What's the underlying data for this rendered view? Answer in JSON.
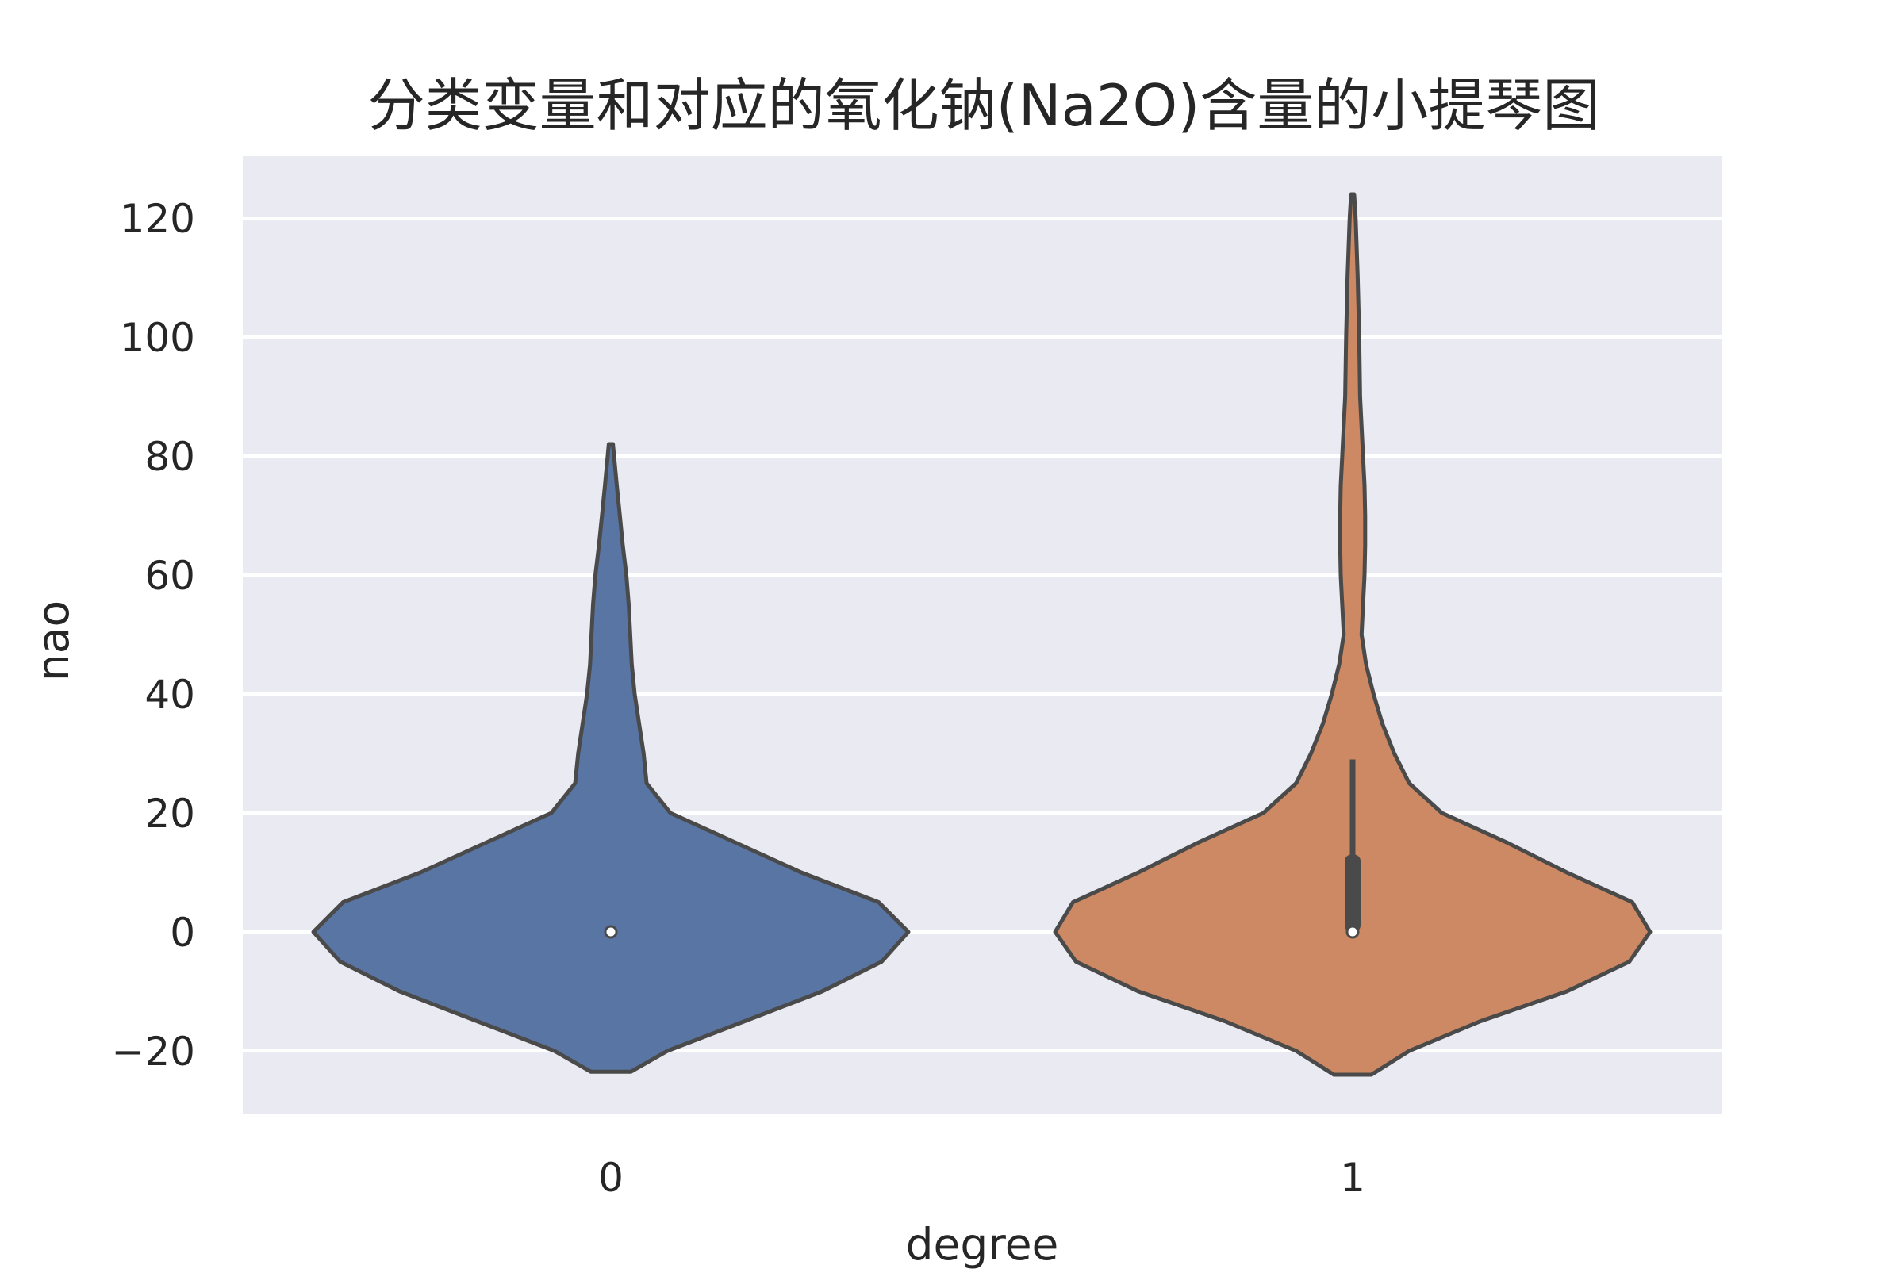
{
  "chart_data": {
    "type": "violin",
    "title": "分类变量和对应的氧化钠(Na2O)含量的小提琴图",
    "xlabel": "degree",
    "ylabel": "nao",
    "ylim": [
      -30,
      131
    ],
    "yticks": [
      -20,
      0,
      20,
      40,
      60,
      80,
      100,
      120
    ],
    "ytick_labels": [
      "−20",
      "0",
      "20",
      "40",
      "60",
      "80",
      "100",
      "120"
    ],
    "grid": true,
    "categories": [
      "0",
      "1"
    ],
    "series": [
      {
        "category": "0",
        "color": "#5975a4",
        "median": 0,
        "q1": 0,
        "q3": 0,
        "whisker_low": 0,
        "whisker_high": 0,
        "min": -23.5,
        "max": 82,
        "density": [
          [
            -23.5,
            0.067
          ],
          [
            -20,
            0.19
          ],
          [
            -15,
            0.45
          ],
          [
            -10,
            0.71
          ],
          [
            -5,
            0.91
          ],
          [
            0,
            1.0
          ],
          [
            5,
            0.9
          ],
          [
            10,
            0.64
          ],
          [
            15,
            0.42
          ],
          [
            20,
            0.2
          ],
          [
            25,
            0.12
          ],
          [
            30,
            0.11
          ],
          [
            35,
            0.095
          ],
          [
            40,
            0.08
          ],
          [
            45,
            0.07
          ],
          [
            50,
            0.065
          ],
          [
            55,
            0.06
          ],
          [
            60,
            0.052
          ],
          [
            65,
            0.04
          ],
          [
            70,
            0.03
          ],
          [
            75,
            0.02
          ],
          [
            82,
            0.007
          ]
        ]
      },
      {
        "category": "1",
        "color": "#cc8963",
        "median": 0,
        "q1": 0,
        "q3": 13,
        "whisker_low": 0,
        "whisker_high": 29,
        "min": -24,
        "max": 124,
        "density": [
          [
            -24,
            0.063
          ],
          [
            -20,
            0.19
          ],
          [
            -15,
            0.43
          ],
          [
            -10,
            0.72
          ],
          [
            -5,
            0.93
          ],
          [
            0,
            1.0
          ],
          [
            5,
            0.94
          ],
          [
            10,
            0.72
          ],
          [
            15,
            0.52
          ],
          [
            20,
            0.3
          ],
          [
            25,
            0.19
          ],
          [
            30,
            0.14
          ],
          [
            35,
            0.1
          ],
          [
            40,
            0.07
          ],
          [
            45,
            0.045
          ],
          [
            50,
            0.03
          ],
          [
            55,
            0.035
          ],
          [
            60,
            0.04
          ],
          [
            65,
            0.042
          ],
          [
            70,
            0.042
          ],
          [
            75,
            0.04
          ],
          [
            80,
            0.035
          ],
          [
            90,
            0.025
          ],
          [
            100,
            0.022
          ],
          [
            110,
            0.017
          ],
          [
            120,
            0.01
          ],
          [
            124,
            0.005
          ]
        ]
      }
    ]
  }
}
